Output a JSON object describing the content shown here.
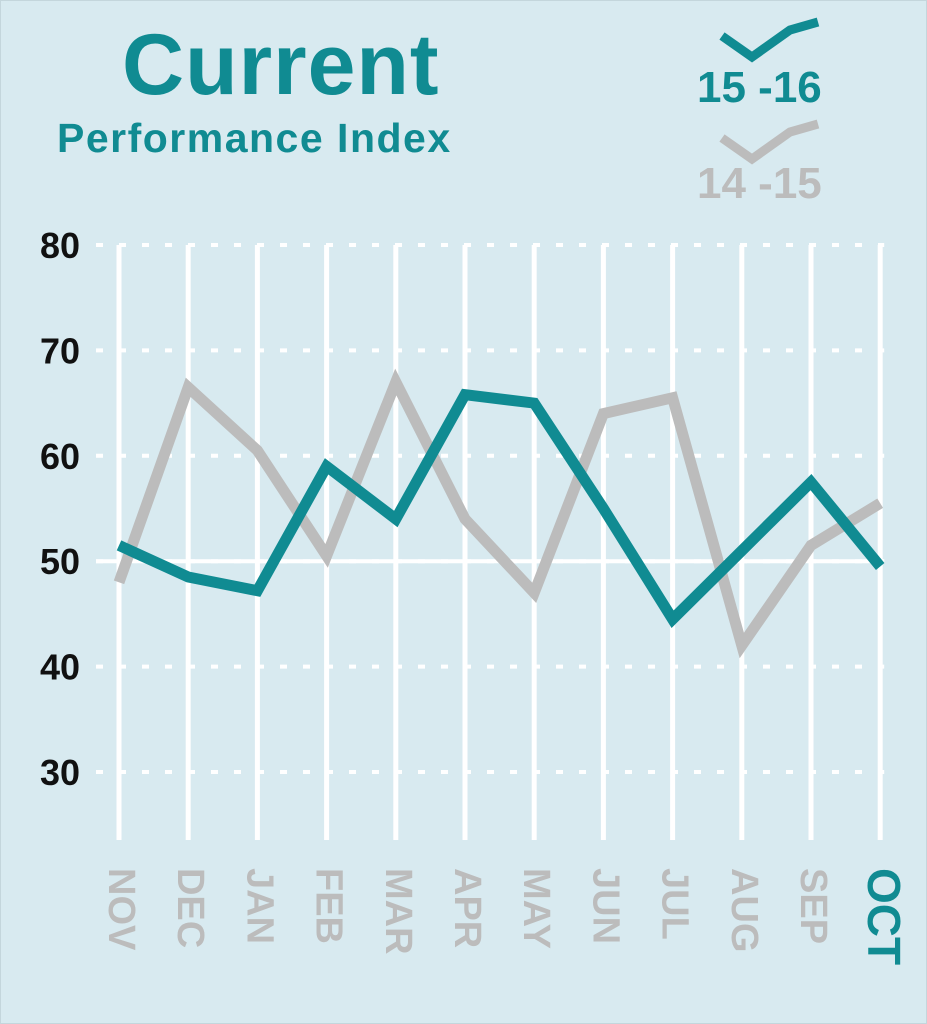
{
  "chart_data": {
    "type": "line",
    "title": "Current",
    "subtitle": "Performance Index",
    "categories": [
      "NOV",
      "DEC",
      "JAN",
      "FEB",
      "MAR",
      "APR",
      "MAY",
      "JUN",
      "JUL",
      "AUG",
      "SEP",
      "OCT"
    ],
    "ylim": [
      25,
      80
    ],
    "yticks": [
      30,
      40,
      50,
      60,
      70,
      80
    ],
    "grid": true,
    "legend_position": "top-right",
    "series": [
      {
        "name": "15-16",
        "label": "15 -16",
        "color": "#108b92",
        "values": [
          51.5,
          48.5,
          47.2,
          59.0,
          54.0,
          65.8,
          65.0,
          55.0,
          44.5,
          51.0,
          57.5,
          49.5
        ]
      },
      {
        "name": "14-15",
        "label": "14 -15",
        "color": "#bcbcbc",
        "values": [
          48.0,
          66.5,
          60.5,
          50.5,
          67.0,
          54.0,
          47.0,
          64.0,
          65.5,
          42.0,
          51.5,
          55.5
        ]
      }
    ],
    "highlight_category": "OCT",
    "category_color": "#bcbcbc",
    "highlight_color": "#108b92"
  }
}
